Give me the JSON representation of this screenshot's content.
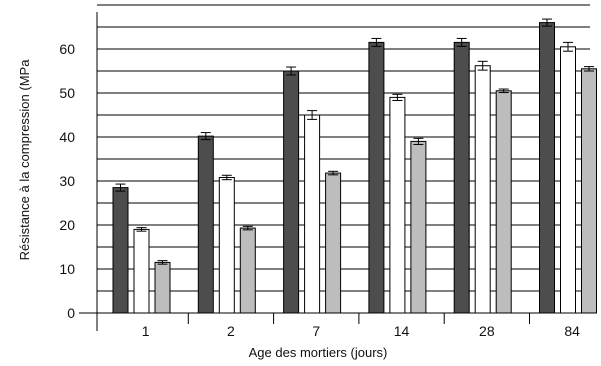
{
  "chart_data": {
    "type": "bar",
    "title": "",
    "xlabel": "Age des mortiers (jours)",
    "ylabel": "Résistance à la compression (MPa",
    "categories": [
      "1",
      "2",
      "7",
      "14",
      "28",
      "84"
    ],
    "ylim": [
      0,
      70
    ],
    "yticks": [
      0,
      10,
      20,
      30,
      40,
      50,
      60
    ],
    "grid": "horizontal",
    "error_bars": true,
    "legend": "none",
    "series": [
      {
        "values": [
          28.5,
          40.2,
          55.0,
          61.5,
          61.5,
          66.0
        ],
        "errors": [
          0.8,
          0.8,
          0.9,
          0.9,
          0.9,
          0.8
        ],
        "color": "#4d4d4d"
      },
      {
        "values": [
          19.0,
          30.8,
          45.0,
          49.0,
          56.2,
          60.5
        ],
        "errors": [
          0.4,
          0.5,
          1.0,
          0.7,
          1.0,
          1.0
        ],
        "color": "#ffffff"
      },
      {
        "values": [
          11.5,
          19.3,
          31.8,
          39.0,
          50.5,
          55.5
        ],
        "errors": [
          0.4,
          0.4,
          0.4,
          0.7,
          0.4,
          0.5
        ],
        "color": "#bdbdbd"
      }
    ]
  }
}
